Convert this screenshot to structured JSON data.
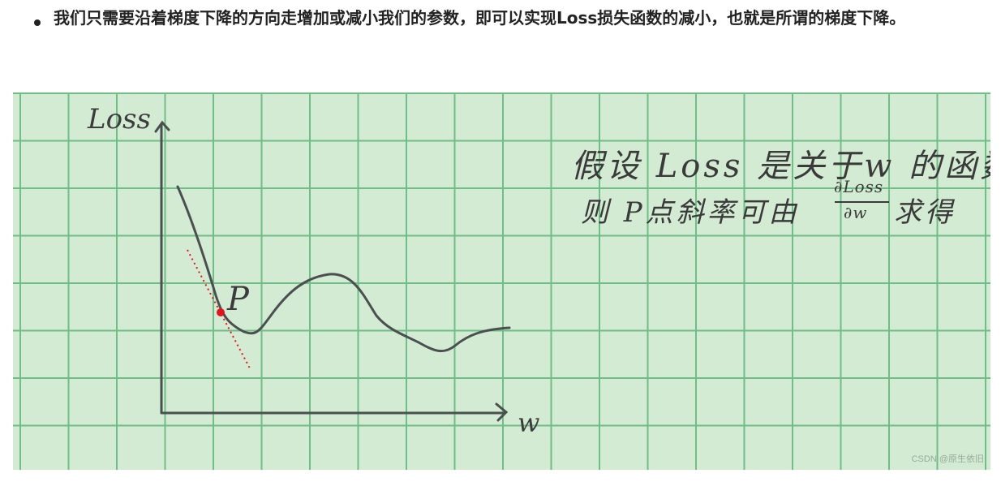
{
  "paragraph": {
    "text": "我们只需要沿着梯度下降的方向走增加或减小我们的参数，即可以实现Loss损失函数的减小，也就是所谓的梯度下降。"
  },
  "figure": {
    "y_axis_label": "Loss",
    "x_axis_label": "w",
    "point_label": "P",
    "note_line1": "假设 Loss 是关于w 的函数",
    "note_line2_prefix": "则 P点斜率可由",
    "fraction_numerator": "∂Loss",
    "fraction_denominator": "∂w",
    "note_line2_suffix": "求得",
    "watermark": "CSDN @原生依旧",
    "colors": {
      "curve": "#4a4f4f",
      "point": "#e0141c",
      "grid": "#6fbd87",
      "paper": "#d3ebd3"
    }
  }
}
